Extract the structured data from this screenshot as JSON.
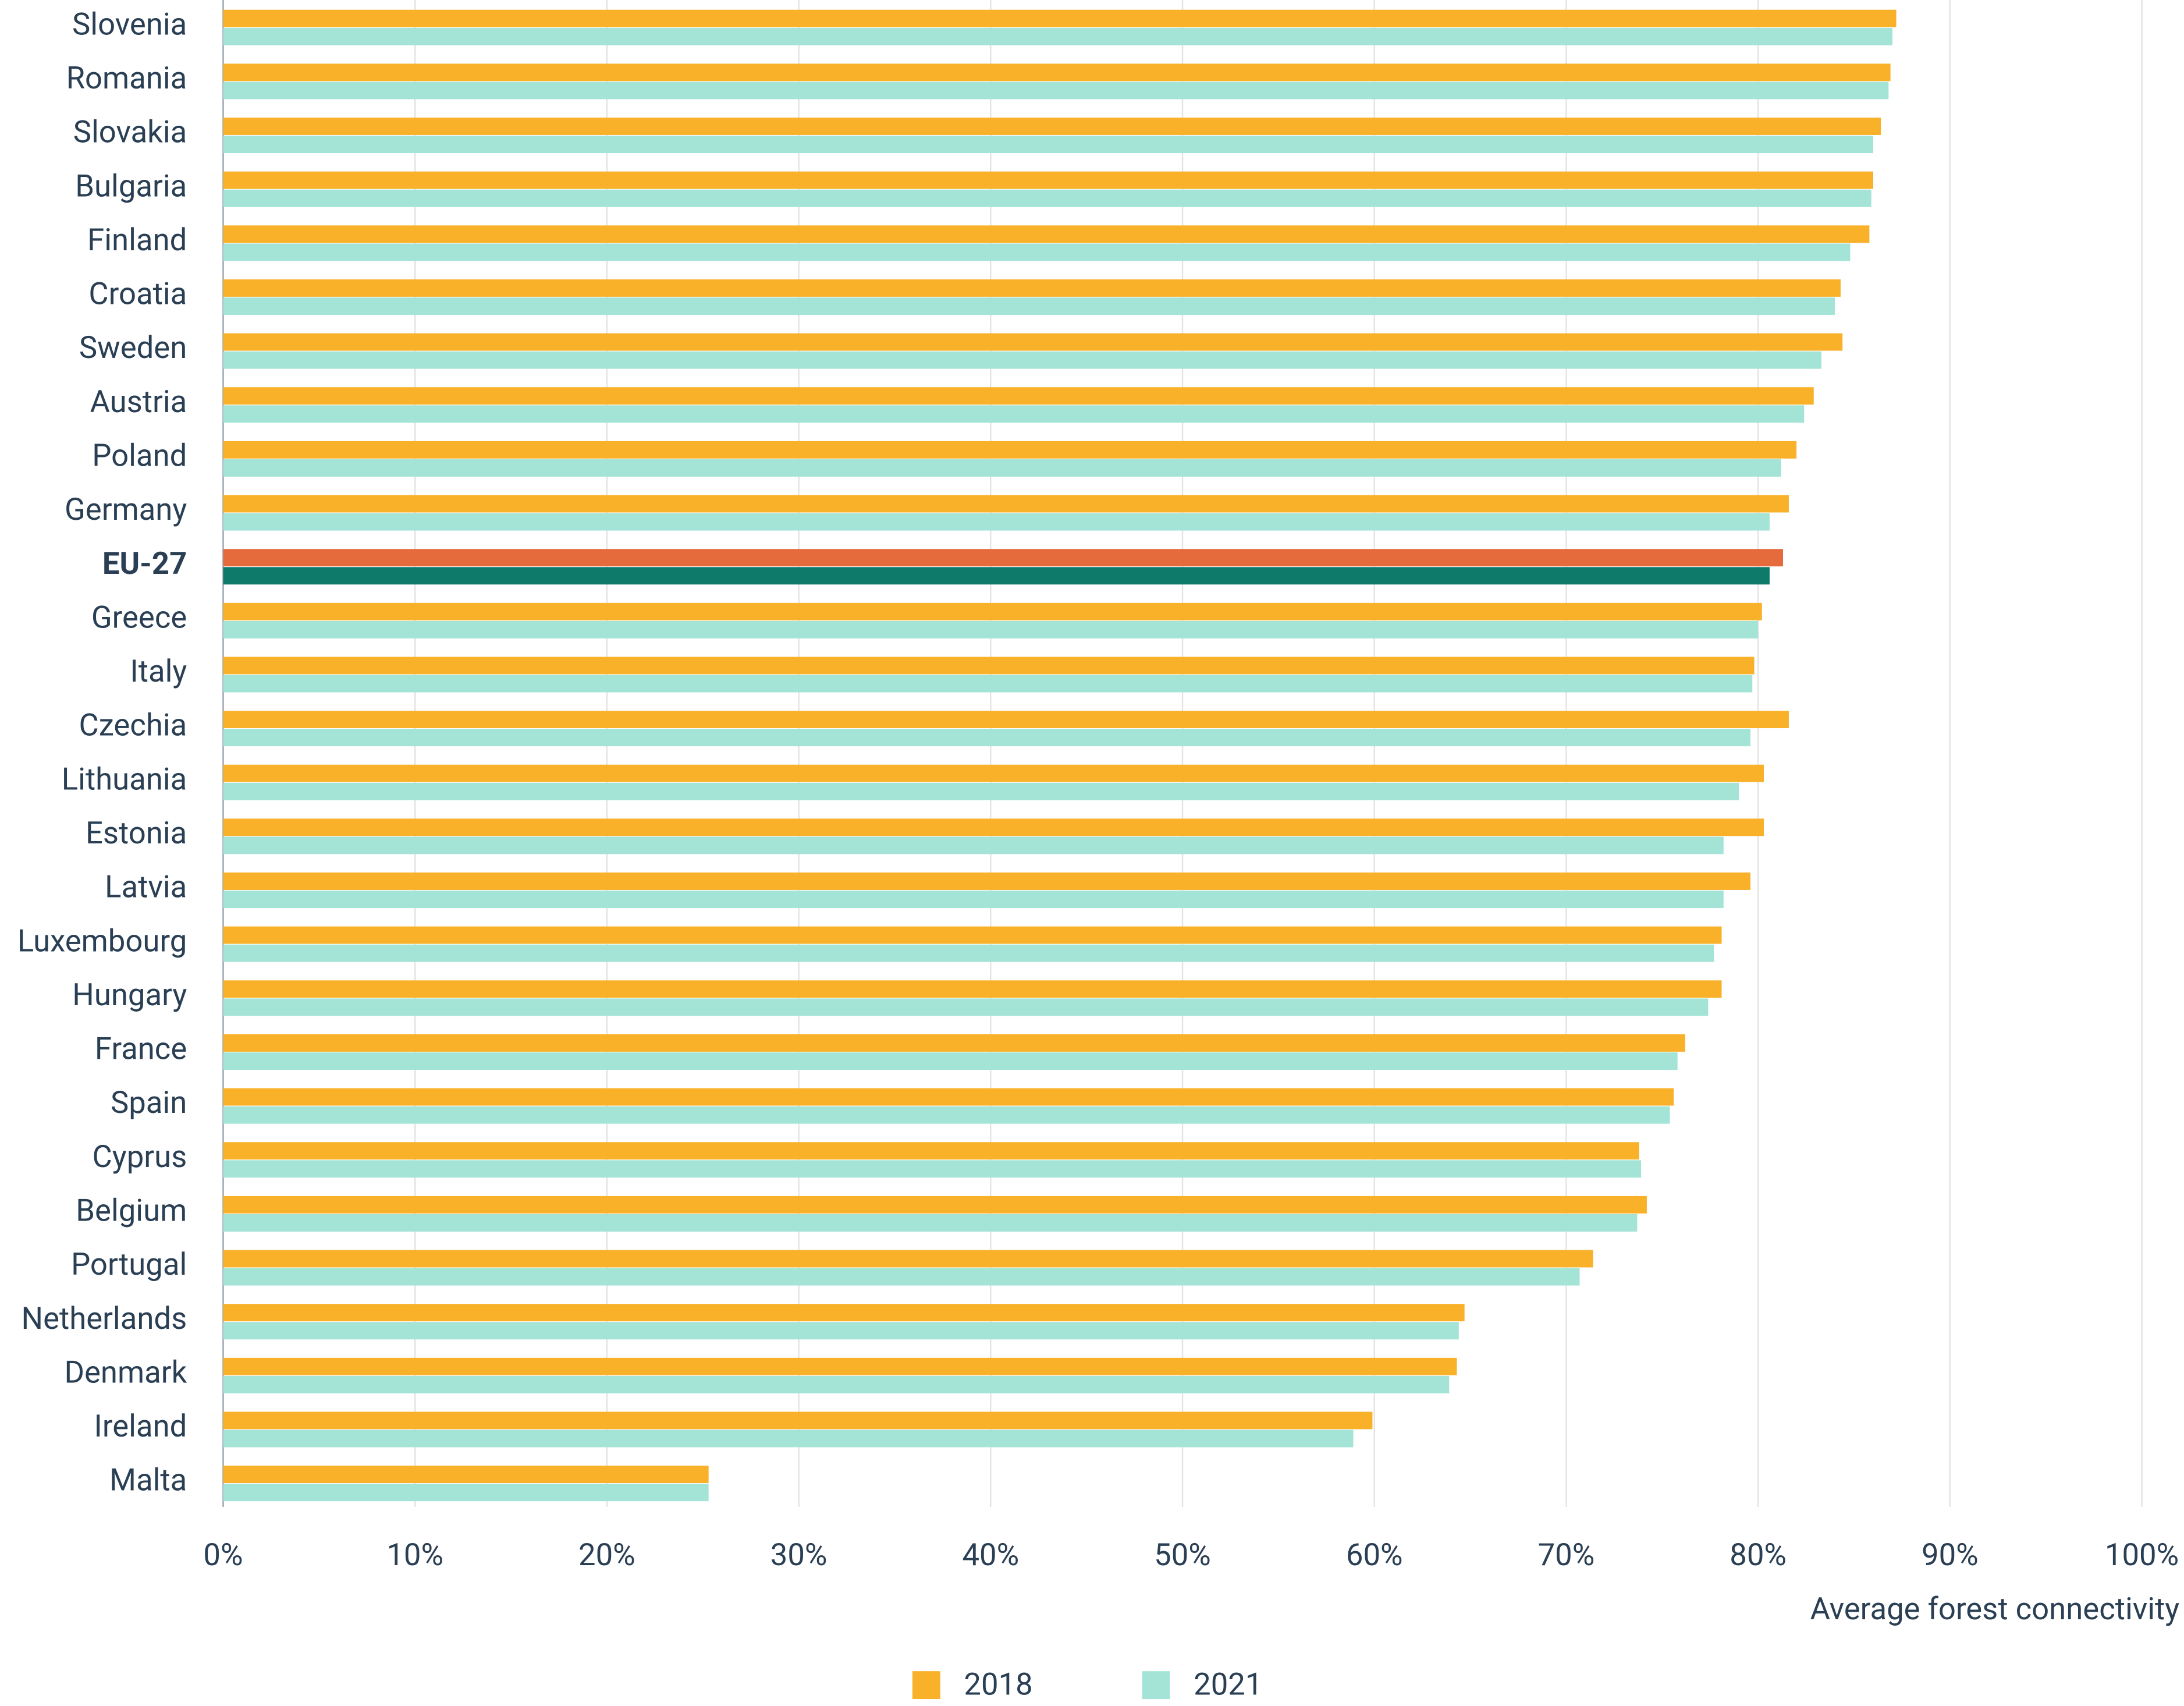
{
  "chart_data": {
    "type": "hbar",
    "categories": [
      "Slovenia",
      "Romania",
      "Slovakia",
      "Bulgaria",
      "Finland",
      "Croatia",
      "Sweden",
      "Austria",
      "Poland",
      "Germany",
      "EU-27",
      "Greece",
      "Italy",
      "Czechia",
      "Lithuania",
      "Estonia",
      "Latvia",
      "Luxembourg",
      "Hungary",
      "France",
      "Spain",
      "Cyprus",
      "Belgium",
      "Portugal",
      "Netherlands",
      "Denmark",
      "Ireland",
      "Malta"
    ],
    "series": [
      {
        "name": "2018",
        "color": "#f9b12a",
        "values": [
          87.2,
          86.9,
          86.4,
          86.0,
          85.8,
          84.3,
          84.4,
          82.9,
          82.0,
          81.6,
          81.3,
          80.2,
          79.8,
          81.6,
          80.3,
          80.3,
          79.6,
          78.1,
          78.1,
          76.2,
          75.6,
          73.8,
          74.2,
          71.4,
          64.7,
          64.3,
          59.9,
          25.3
        ]
      },
      {
        "name": "2021",
        "color": "#a3e4d7",
        "values": [
          87.0,
          86.8,
          86.0,
          85.9,
          84.8,
          84.0,
          83.3,
          82.4,
          81.2,
          80.6,
          80.6,
          80.0,
          79.7,
          79.6,
          79.0,
          78.2,
          78.2,
          77.7,
          77.4,
          75.8,
          75.4,
          73.9,
          73.7,
          70.7,
          64.4,
          63.9,
          58.9,
          25.3
        ]
      }
    ],
    "highlight_category": "EU-27",
    "highlight_colors": [
      "#e56b3d",
      "#0e7a6a"
    ],
    "xlim": [
      0,
      100
    ],
    "xticks": [
      {
        "value": 0,
        "label": "0%"
      },
      {
        "value": 10,
        "label": "10%"
      },
      {
        "value": 20,
        "label": "20%"
      },
      {
        "value": 30,
        "label": "30%"
      },
      {
        "value": 40,
        "label": "40%"
      },
      {
        "value": 50,
        "label": "50%"
      },
      {
        "value": 60,
        "label": "60%"
      },
      {
        "value": 70,
        "label": "70%"
      },
      {
        "value": 80,
        "label": "80%"
      },
      {
        "value": 90,
        "label": "90%"
      },
      {
        "value": 100,
        "label": "100%"
      }
    ],
    "xlabel": "Average forest connectivity",
    "grid": true,
    "legend": "bottom"
  }
}
